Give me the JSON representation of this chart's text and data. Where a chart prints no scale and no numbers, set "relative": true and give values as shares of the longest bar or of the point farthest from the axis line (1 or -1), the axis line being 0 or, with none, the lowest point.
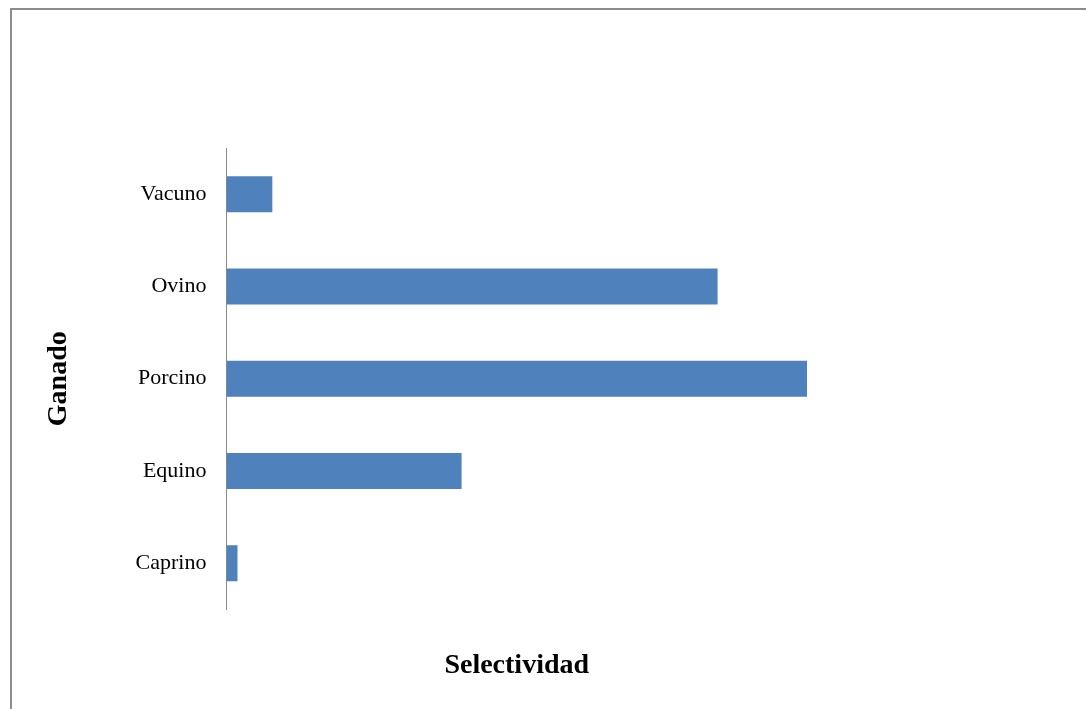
{
  "chart_data": {
    "type": "bar",
    "orientation": "horizontal",
    "relative": true,
    "xlabel": "Selectividad",
    "ylabel": "Ganado",
    "categories": [
      "Vacuno",
      "Ovino",
      "Porcino",
      "Equino",
      "Caprino"
    ],
    "values": [
      0.079,
      0.846,
      1,
      0.405,
      0.019
    ],
    "color": "#4f81bd",
    "grid": false,
    "legend": false
  }
}
